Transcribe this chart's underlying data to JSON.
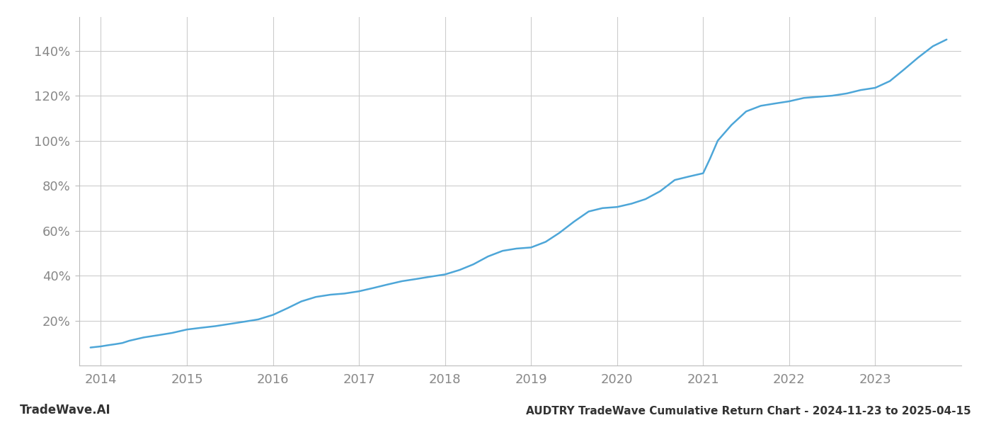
{
  "title": "AUDTRY TradeWave Cumulative Return Chart - 2024-11-23 to 2025-04-15",
  "watermark": "TradeWave.AI",
  "line_color": "#4da6d8",
  "background_color": "#ffffff",
  "grid_color": "#cccccc",
  "x_label_color": "#888888",
  "y_label_color": "#888888",
  "title_color": "#333333",
  "watermark_color": "#333333",
  "spine_color": "#bbbbbb",
  "x_years": [
    2014,
    2015,
    2016,
    2017,
    2018,
    2019,
    2020,
    2021,
    2022,
    2023
  ],
  "y_ticks": [
    20,
    40,
    60,
    80,
    100,
    120,
    140
  ],
  "x_data": [
    2013.88,
    2014.0,
    2014.08,
    2014.17,
    2014.25,
    2014.33,
    2014.5,
    2014.67,
    2014.83,
    2015.0,
    2015.17,
    2015.33,
    2015.5,
    2015.67,
    2015.83,
    2016.0,
    2016.17,
    2016.33,
    2016.5,
    2016.67,
    2016.83,
    2017.0,
    2017.17,
    2017.33,
    2017.5,
    2017.67,
    2017.83,
    2018.0,
    2018.17,
    2018.33,
    2018.5,
    2018.67,
    2018.83,
    2019.0,
    2019.17,
    2019.33,
    2019.5,
    2019.67,
    2019.83,
    2020.0,
    2020.17,
    2020.33,
    2020.5,
    2020.67,
    2020.83,
    2021.0,
    2021.08,
    2021.17,
    2021.33,
    2021.5,
    2021.67,
    2021.83,
    2022.0,
    2022.17,
    2022.33,
    2022.5,
    2022.67,
    2022.83,
    2023.0,
    2023.17,
    2023.33,
    2023.5,
    2023.67,
    2023.83
  ],
  "y_data": [
    8.0,
    8.5,
    9.0,
    9.5,
    10.0,
    11.0,
    12.5,
    13.5,
    14.5,
    16.0,
    16.8,
    17.5,
    18.5,
    19.5,
    20.5,
    22.5,
    25.5,
    28.5,
    30.5,
    31.5,
    32.0,
    33.0,
    34.5,
    36.0,
    37.5,
    38.5,
    39.5,
    40.5,
    42.5,
    45.0,
    48.5,
    51.0,
    52.0,
    52.5,
    55.0,
    59.0,
    64.0,
    68.5,
    70.0,
    70.5,
    72.0,
    74.0,
    77.5,
    82.5,
    84.0,
    85.5,
    92.0,
    100.0,
    107.0,
    113.0,
    115.5,
    116.5,
    117.5,
    119.0,
    119.5,
    120.0,
    121.0,
    122.5,
    123.5,
    126.5,
    131.5,
    137.0,
    142.0,
    145.0
  ],
  "xlim": [
    2013.75,
    2024.0
  ],
  "ylim": [
    0,
    155
  ],
  "title_fontsize": 11,
  "watermark_fontsize": 12,
  "tick_label_fontsize": 13,
  "line_width": 1.8
}
